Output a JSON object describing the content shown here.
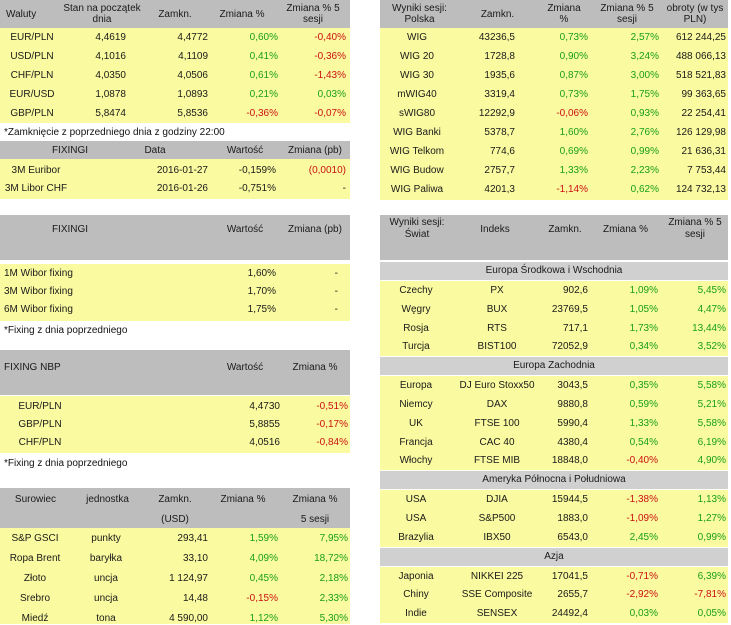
{
  "waluty": {
    "headers": [
      "Waluty",
      "Stan na początek dnia",
      "Zamkn.",
      "Zmiana %",
      "Zmiana % 5 sesji"
    ],
    "rows": [
      [
        "EUR/PLN",
        "4,4619",
        "4,4772",
        "0,60%",
        "-0,40%"
      ],
      [
        "USD/PLN",
        "4,1016",
        "4,1109",
        "0,41%",
        "-0,36%"
      ],
      [
        "CHF/PLN",
        "4,0350",
        "4,0506",
        "0,61%",
        "-1,43%"
      ],
      [
        "EUR/USD",
        "1,0878",
        "1,0893",
        "0,21%",
        "0,03%"
      ],
      [
        "GBP/PLN",
        "5,8474",
        "5,8536",
        "-0,36%",
        "-0,07%"
      ]
    ],
    "note": "*Zamknięcie z poprzedniego dnia z godziny 22:00"
  },
  "fixingi1": {
    "headers": [
      "FIXINGI",
      "Data",
      "Wartość",
      "Zmiana (pb)"
    ],
    "rows": [
      [
        "3M Euribor",
        "2016-01-27",
        "-0,159%",
        "(0,0010)"
      ],
      [
        "3M Libor CHF",
        "2016-01-26",
        "-0,751%",
        "-"
      ]
    ]
  },
  "fixingi2": {
    "headers": [
      "FIXINGI",
      "Wartość",
      "Zmiana (pb)"
    ],
    "rows": [
      [
        "1M Wibor fixing",
        "1,60%",
        "-"
      ],
      [
        "3M Wibor fixing",
        "1,70%",
        "-"
      ],
      [
        "6M Wibor fixing",
        "1,75%",
        "-"
      ]
    ],
    "note": "*Fixing z dnia poprzedniego"
  },
  "nbp": {
    "headers": [
      "FIXING NBP",
      "Wartość",
      "Zmiana %"
    ],
    "rows": [
      [
        "EUR/PLN",
        "4,4730",
        "-0,51%"
      ],
      [
        "GBP/PLN",
        "5,8855",
        "-0,17%"
      ],
      [
        "CHF/PLN",
        "4,0516",
        "-0,84%"
      ]
    ],
    "note": "*Fixing z dnia poprzedniego"
  },
  "surowce": {
    "headers": [
      "Surowiec",
      "jednostka",
      "Zamkn.",
      "Zmiana %",
      "Zmiana %"
    ],
    "subheaders": [
      "(USD)",
      "5 sesji"
    ],
    "rows": [
      [
        "S&P GSCI",
        "punkty",
        "293,41",
        "1,59%",
        "7,95%"
      ],
      [
        "Ropa Brent",
        "baryłka",
        "33,10",
        "4,09%",
        "18,72%"
      ],
      [
        "Złoto",
        "uncja",
        "1 124,97",
        "0,45%",
        "2,18%"
      ],
      [
        "Srebro",
        "uncja",
        "14,48",
        "-0,15%",
        "2,33%"
      ],
      [
        "Miedź",
        "tona",
        "4 590,00",
        "1,12%",
        "5,30%"
      ]
    ]
  },
  "polska": {
    "headers": [
      "Wyniki sesji: Polska",
      "Zamkn.",
      "Zmiana %",
      "Zmiana % 5 sesji",
      "obroty (w tys PLN)"
    ],
    "rows": [
      [
        "WIG",
        "43236,5",
        "0,73%",
        "2,57%",
        "612 244,25"
      ],
      [
        "WIG 20",
        "1728,8",
        "0,90%",
        "3,24%",
        "488 066,13"
      ],
      [
        "WIG 30",
        "1935,6",
        "0,87%",
        "3,00%",
        "518 521,83"
      ],
      [
        "mWIG40",
        "3319,4",
        "0,73%",
        "1,75%",
        "99 363,65"
      ],
      [
        "sWIG80",
        "12292,9",
        "-0,06%",
        "0,93%",
        "22 254,41"
      ],
      [
        "WIG Banki",
        "5378,7",
        "1,60%",
        "2,76%",
        "126 129,98"
      ],
      [
        "WIG Telkom",
        "774,6",
        "0,69%",
        "0,99%",
        "21 636,31"
      ],
      [
        "WIG Budow",
        "2757,7",
        "1,33%",
        "2,23%",
        "7 753,44"
      ],
      [
        "WIG Paliwa",
        "4201,3",
        "-1,14%",
        "0,62%",
        "124 732,13"
      ]
    ]
  },
  "swiat": {
    "headers": [
      "Wyniki sesji: Świat",
      "Indeks",
      "Zamkn.",
      "Zmiana %",
      "Zmiana % 5 sesji"
    ],
    "groups": [
      {
        "name": "Europa Środkowa i Wschodnia",
        "rows": [
          [
            "Czechy",
            "PX",
            "902,6",
            "1,09%",
            "5,45%"
          ],
          [
            "Węgry",
            "BUX",
            "23769,5",
            "1,05%",
            "4,47%"
          ],
          [
            "Rosja",
            "RTS",
            "717,1",
            "1,73%",
            "13,44%"
          ],
          [
            "Turcja",
            "BIST100",
            "72052,9",
            "0,34%",
            "3,52%"
          ]
        ]
      },
      {
        "name": "Europa Zachodnia",
        "rows": [
          [
            "Europa",
            "DJ Euro Stoxx50",
            "3043,5",
            "0,35%",
            "5,58%"
          ],
          [
            "Niemcy",
            "DAX",
            "9880,8",
            "0,59%",
            "5,21%"
          ],
          [
            "UK",
            "FTSE 100",
            "5990,4",
            "1,33%",
            "5,58%"
          ],
          [
            "Francja",
            "CAC 40",
            "4380,4",
            "0,54%",
            "6,19%"
          ],
          [
            "Włochy",
            "FTSE MIB",
            "18848,0",
            "-0,40%",
            "4,90%"
          ]
        ]
      },
      {
        "name": "Ameryka Północna i Południowa",
        "rows": [
          [
            "USA",
            "DJIA",
            "15944,5",
            "-1,38%",
            "1,13%"
          ],
          [
            "USA",
            "S&P500",
            "1883,0",
            "-1,09%",
            "1,27%"
          ],
          [
            "Brazylia",
            "IBX50",
            "6543,0",
            "2,45%",
            "0,99%"
          ]
        ]
      },
      {
        "name": "Azja",
        "rows": [
          [
            "Japonia",
            "NIKKEI 225",
            "17041,5",
            "-0,71%",
            "6,39%"
          ],
          [
            "Chiny",
            "SSE Composite",
            "2655,7",
            "-2,92%",
            "-7,81%"
          ],
          [
            "Indie",
            "SENSEX",
            "24492,4",
            "0,03%",
            "0,05%"
          ]
        ]
      }
    ]
  },
  "colors": {
    "positive": "#18a018",
    "negative": "#cc1010",
    "header": "#bdbdbd",
    "row": "#fafaa0"
  }
}
